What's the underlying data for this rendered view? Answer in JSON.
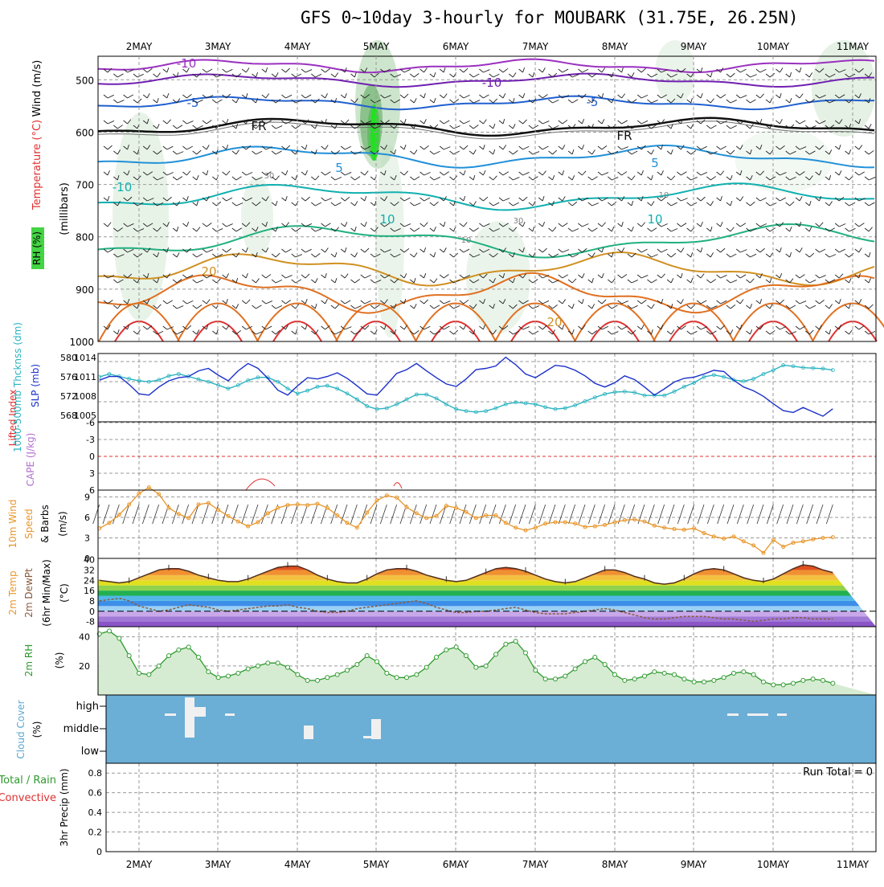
{
  "title": "GFS 0~10day 3-hourly for MOUBARK (31.75E, 26.25N)",
  "date_labels": [
    "2MAY",
    "3MAY",
    "4MAY",
    "5MAY",
    "6MAY",
    "7MAY",
    "8MAY",
    "9MAY",
    "10MAY",
    "11MAY"
  ],
  "panels": {
    "upper": {
      "ylabel_millibars": "(millibars)",
      "label_wind": "Wind (m/s)",
      "label_temperature": "Temperature (°C)",
      "label_rh": "RH (%)",
      "yticks": [
        500,
        600,
        700,
        800,
        900,
        1000
      ],
      "ylim": [
        455,
        1000
      ],
      "contour_labels": [
        "-10",
        "-10",
        "-5",
        "-5",
        "FR",
        "FR",
        "5",
        "5",
        "-10",
        "10",
        "10",
        "20",
        "20",
        "30",
        "30",
        "10",
        "10"
      ]
    },
    "thickness_slp": {
      "label_thickness": "1000-500mb Thcknss (dm)",
      "label_slp": "SLP (mb)",
      "thickness_ticks": [
        568,
        572,
        576,
        580
      ],
      "slp_ticks": [
        1005,
        1008,
        1011,
        1014
      ],
      "thickness_color": "#2ab3c0",
      "slp_color": "#1b2fc9"
    },
    "lifted_cape": {
      "label_li": "Lifted Index",
      "label_cape": "CAPE (J/kg)",
      "li_ticks": [
        "6",
        "3",
        "0",
        "-3",
        "-6"
      ],
      "li_color": "#e03030",
      "cape_color": "#b070d0"
    },
    "wind10m": {
      "label_main": "10m Wind",
      "label_speed": "Speed",
      "label_barbs": "& Barbs",
      "unit": "(m/s)",
      "yticks": [
        0,
        3,
        6,
        9
      ],
      "color": "#e8962a"
    },
    "temp2m": {
      "label_temp": "2m Temp",
      "label_dewpt": "2m DewPt",
      "label_minmax": "(6hr Min/Max)",
      "unit": "(°C)",
      "yticks": [
        40,
        32,
        24,
        16,
        8,
        0,
        -8
      ]
    },
    "rh2m": {
      "label": "2m RH",
      "unit": "(%)",
      "yticks": [
        20,
        40
      ],
      "color": "#2e9a2e"
    },
    "cloud": {
      "label": "Cloud Cover",
      "unit": "(%)",
      "levels": [
        "high",
        "middle",
        "low"
      ],
      "color": "#6baed6"
    },
    "precip": {
      "label_total": "Total / Rain",
      "label_conv": "Convective",
      "label_axis": "3hr Precip (mm)",
      "yticks": [
        "0",
        "0.2",
        "0.4",
        "0.6",
        "0.8"
      ],
      "run_total": "Run Total = 0",
      "total_color": "#2e9a2e",
      "conv_color": "#e03030"
    }
  },
  "chart_data": [
    {
      "type": "line",
      "title": "1000-500mb Thickness (dm) and SLP (mb)",
      "x_unit": "3-hourly steps from 1 May 12Z",
      "series": [
        {
          "name": "1000-500mb Thickness (dm)",
          "axis": "left",
          "ylim": [
            567,
            581
          ],
          "values": [
            576.5,
            576,
            575.5,
            575.2,
            575.4,
            576.2,
            576.8,
            576.3,
            575.8,
            575.4,
            575.2,
            575.6,
            576.4,
            576.8,
            576.3,
            575.7,
            575.2,
            574.5,
            573.8,
            574.5,
            575.5,
            576.1,
            576.1,
            575.2,
            573.8,
            572.8,
            573.4,
            574.2,
            574.4,
            573.8,
            572.8,
            571.6,
            570.2,
            569.6,
            569.8,
            570.6,
            571.6,
            572.6,
            572.6,
            571.8,
            570.6,
            569.6,
            569.2,
            569,
            569.2,
            569.8,
            570.6,
            571,
            570.8,
            570.6,
            570,
            569.6,
            569.8,
            570.4,
            571.2,
            572,
            572.7,
            573.1,
            573.2,
            573,
            572.4,
            572.4,
            572.4,
            573.2,
            574.2,
            575,
            576.2,
            576.6,
            576.2,
            575.6,
            575.3,
            575.8,
            576.8,
            577.6,
            578.6,
            578.4,
            578.1,
            578,
            577.9,
            577.6
          ]
        },
        {
          "name": "SLP (mb)",
          "axis": "right",
          "ylim": [
            1004,
            1015
          ],
          "values": [
            1008.5,
            1007.5,
            1009.4,
            1010.7,
            1010.2,
            1010.7,
            1011.3,
            1011.3,
            1010,
            1008.5,
            1008.3,
            1009.6,
            1010.6,
            1011.1,
            1011.3,
            1012.2,
            1012.6,
            1011.5,
            1010.6,
            1012.2,
            1013.4,
            1012.6,
            1011,
            1009.1,
            1008.3,
            1009.8,
            1011.1,
            1010.9,
            1011.3,
            1011.9,
            1011,
            1009.8,
            1008.5,
            1008.3,
            1010,
            1011.8,
            1012.4,
            1013.4,
            1012.2,
            1011.1,
            1010.1,
            1009.7,
            1010.9,
            1012.4,
            1012.6,
            1013,
            1014.4,
            1013.2,
            1011.7,
            1011.1,
            1012.1,
            1013.1,
            1012.9,
            1012.3,
            1011.4,
            1010.2,
            1009.6,
            1010.3,
            1011.4,
            1010.8,
            1009.6,
            1008.3,
            1009.3,
            1010.4,
            1011,
            1011.2,
            1011.7,
            1012.3,
            1012.1,
            1010.7,
            1009.6,
            1009,
            1008.1,
            1006.9,
            1005.8,
            1005.5,
            1006.3,
            1005.6,
            1004.9,
            1006.1
          ]
        }
      ],
      "xlabel": "",
      "ylabel": ""
    },
    {
      "type": "line",
      "title": "Lifted Index",
      "series": [
        {
          "name": "Lifted Index",
          "segment": "3MAY-4MAY",
          "values": [
            4.2,
            3.9,
            3.7,
            3.8,
            4.4,
            5.5
          ]
        }
      ],
      "ylim": [
        -6,
        6
      ]
    },
    {
      "type": "line",
      "title": "10m Wind Speed (m/s)",
      "ylim": [
        0,
        10
      ],
      "values": [
        9.4,
        9.8,
        7.6,
        5.9,
        4.8,
        4.4,
        5.2,
        6.4,
        7.9,
        9.5,
        10.4,
        9.4,
        7.4,
        6.5,
        5.9,
        7.9,
        8.1,
        7.1,
        6.2,
        5.4,
        4.7,
        5.3,
        6.6,
        7.4,
        7.8,
        7.9,
        7.8,
        8,
        7.4,
        6.3,
        5.2,
        4.5,
        6.7,
        8.5,
        9.2,
        8.9,
        7.5,
        6.6,
        5.9,
        6.2,
        7.7,
        7.4,
        6.8,
        5.9,
        6.3,
        6.3,
        5.2,
        4.5,
        4.1,
        4.5,
        5.1,
        5.3,
        5.3,
        5.1,
        4.6,
        4.7,
        4.9,
        5.3,
        5.6,
        5.7,
        5.4,
        4.8,
        4.5,
        4.3,
        4.2,
        4.4,
        3.7,
        3.2,
        2.9,
        3.2,
        2.5,
        1.9,
        0.8,
        2.7,
        1.7,
        2.3,
        2.5,
        2.8,
        3.0,
        3.1
      ]
    },
    {
      "type": "area",
      "title": "2m Temp / 2m DewPt (°C)",
      "ylim": [
        -12,
        41
      ],
      "series": [
        {
          "name": "2m Temp",
          "values": [
            26,
            27,
            28,
            27,
            25,
            24,
            23,
            22,
            23,
            26,
            29,
            32,
            33,
            33,
            31,
            28,
            26,
            24,
            23,
            23,
            25,
            28,
            31,
            34,
            35,
            35,
            32,
            28,
            25,
            23,
            22,
            22,
            25,
            29,
            32,
            33,
            33,
            31,
            28,
            26,
            24,
            23,
            24,
            27,
            30,
            33,
            34,
            33,
            31,
            28,
            25,
            23,
            22,
            23,
            26,
            29,
            32,
            32,
            30,
            27,
            25,
            22,
            21,
            22,
            25,
            29,
            32,
            33,
            32,
            29,
            26,
            24,
            23,
            25,
            29,
            33,
            36,
            35,
            32,
            30
          ]
        },
        {
          "name": "2m DewPt",
          "values": [
            4,
            5,
            6,
            6,
            7,
            8,
            9,
            10,
            8,
            4,
            2,
            0,
            1,
            3,
            5,
            4,
            3,
            1,
            0,
            1,
            2,
            3,
            4,
            4,
            5,
            3,
            2,
            0,
            -1,
            -1,
            0,
            2,
            3,
            4,
            5,
            6,
            7,
            8,
            6,
            3,
            1,
            -1,
            -1,
            0,
            0,
            1,
            2,
            3,
            1,
            -1,
            -2,
            -2,
            -2,
            -1,
            0,
            1,
            2,
            1,
            -1,
            -3,
            -5,
            -6,
            -6,
            -5,
            -4,
            -4,
            -4,
            -5,
            -6,
            -6,
            -7,
            -8,
            -7,
            -6,
            -6,
            -5,
            -5,
            -6,
            -6,
            -6
          ]
        }
      ]
    },
    {
      "type": "area",
      "title": "2m RH (%)",
      "ylim": [
        0,
        47
      ],
      "values": [
        13,
        15,
        19,
        26,
        35,
        42,
        44,
        39,
        27,
        15,
        14,
        20,
        27,
        31,
        33,
        26,
        16,
        12,
        13,
        15,
        18,
        20,
        22,
        22,
        19,
        14,
        10,
        10,
        12,
        14,
        17,
        21,
        27,
        23,
        15,
        12,
        12,
        14,
        19,
        26,
        31,
        33,
        27,
        19,
        20,
        28,
        35,
        37,
        29,
        17,
        11,
        11,
        13,
        18,
        23,
        26,
        21,
        14,
        10,
        11,
        13,
        16,
        15,
        14,
        11,
        9,
        9,
        10,
        12,
        15,
        16,
        14,
        9,
        7,
        7,
        8,
        10,
        11,
        10,
        8
      ]
    },
    {
      "type": "bar",
      "title": "Cloud Cover (%)",
      "categories": [
        "high",
        "middle",
        "low"
      ],
      "values": [
        0,
        0,
        0
      ],
      "note": "Blue background with small white patches near 2-3MAY, 4MAY, 5MAY, 9-10MAY"
    },
    {
      "type": "bar",
      "title": "3hr Precip (mm)",
      "values": [
        0
      ],
      "ylim": [
        0,
        0.9
      ],
      "run_total": 0
    }
  ]
}
